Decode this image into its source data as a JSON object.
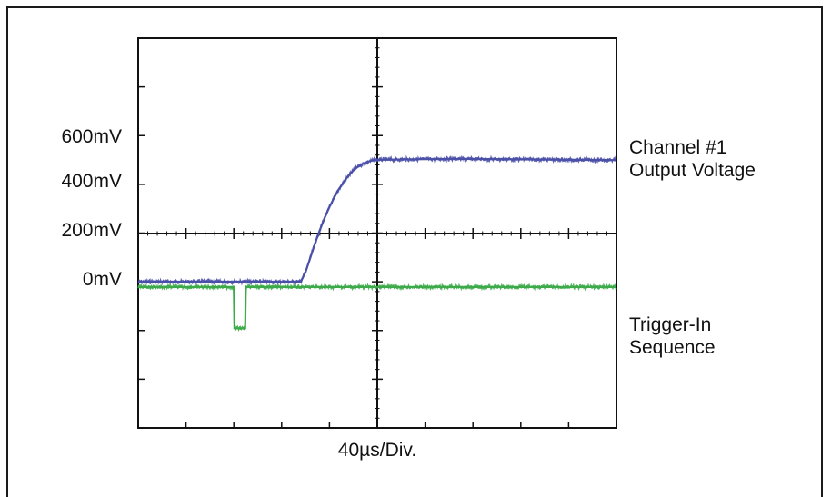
{
  "chart_data": {
    "type": "line",
    "title": "",
    "xlabel": "40µs/Div.",
    "x_units": "µs",
    "x_per_division": 40,
    "x_divisions": 10,
    "xlim": [
      0,
      400
    ],
    "y_divisions": 8,
    "y_tick_labels": [
      "600mV",
      "400mV",
      "200mV",
      "0mV"
    ],
    "grid": "center crosshair with tick marks",
    "series": [
      {
        "name": "Channel #1 Output Voltage",
        "label_lines": [
          "Channel #1",
          "Output Voltage"
        ],
        "color": "#4a4fa8",
        "units": "mV",
        "x": [
          0,
          100,
          136,
          140,
          144,
          148,
          152,
          156,
          160,
          164,
          168,
          172,
          176,
          180,
          184,
          188,
          192,
          196,
          200,
          260,
          320,
          400
        ],
        "y": [
          0,
          0,
          0,
          40,
          100,
          160,
          215,
          265,
          310,
          350,
          385,
          415,
          440,
          462,
          478,
          490,
          498,
          503,
          506,
          510,
          508,
          505
        ]
      },
      {
        "name": "Trigger-In Sequence",
        "label_lines": [
          "Trigger-In",
          "Sequence"
        ],
        "color": "#3daa4a",
        "units": "div",
        "x": [
          0,
          80,
          80.5,
          89.5,
          90,
          400
        ],
        "y": [
          -1.1,
          -1.1,
          -1.95,
          -1.95,
          -1.1,
          -1.1
        ]
      }
    ]
  }
}
